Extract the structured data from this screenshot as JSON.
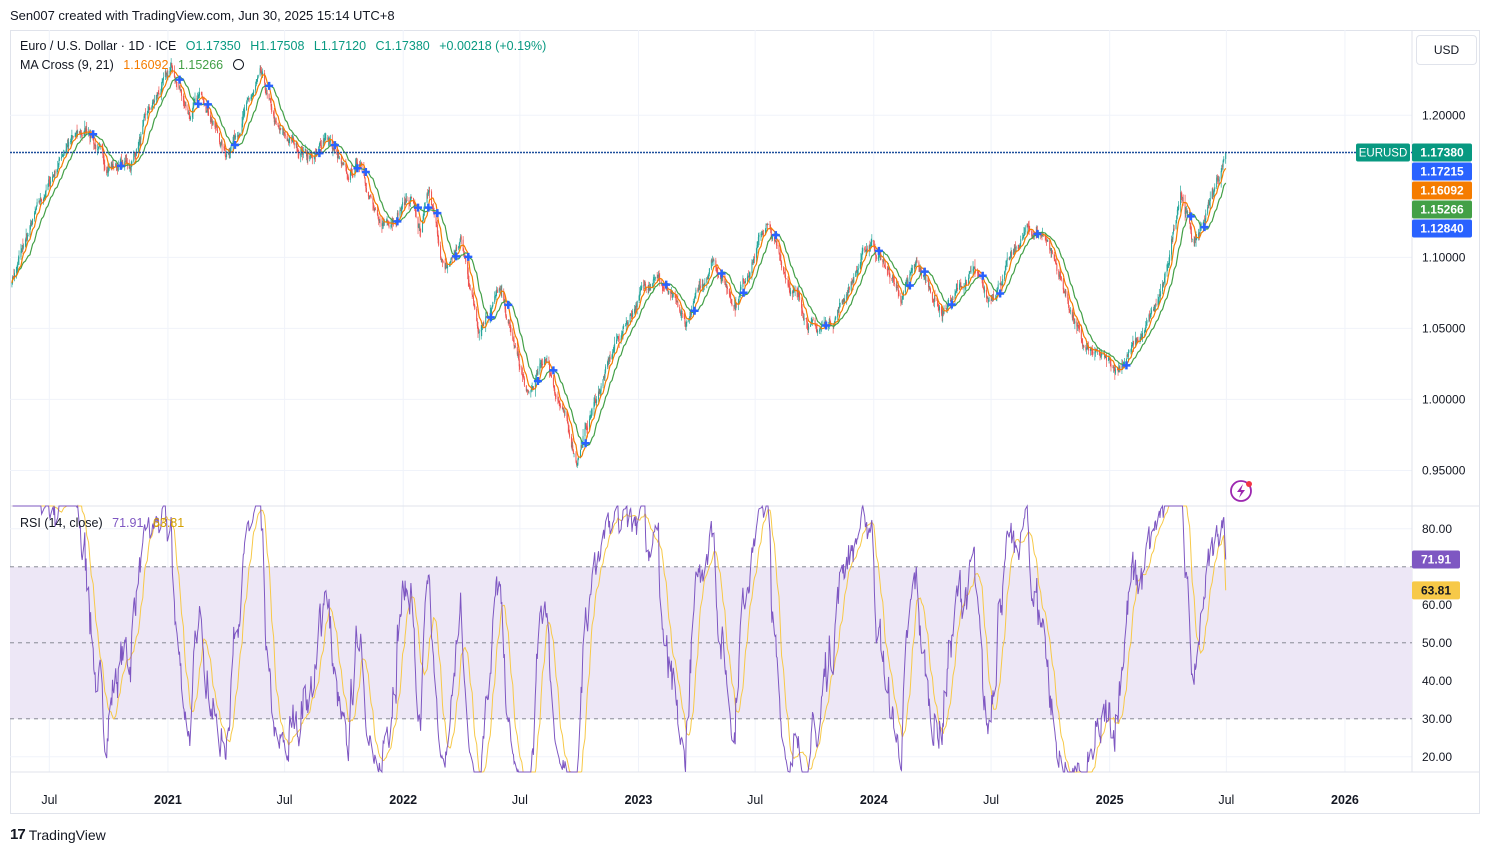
{
  "caption": "Sen007 created with TradingView.com, Jun 30, 2025 15:14 UTC+8",
  "legend": {
    "symbol": "Euro / U.S. Dollar · 1D · ICE",
    "open": "O1.17350",
    "high": "H1.17508",
    "low": "L1.17120",
    "close": "C1.17380",
    "change": "+0.00218 (+0.19%)",
    "ma_title": "MA Cross (9, 21)",
    "ma_fast": "1.16092",
    "ma_slow": "1.15266",
    "rsi_title": "RSI (14, close)",
    "rsi_value": "71.91",
    "rsi_ma": "63.81"
  },
  "currency_button": "USD",
  "brand": "TradingView",
  "colors": {
    "up": "#26a69a",
    "down": "#ef5350",
    "ma_fast": "#f57c00",
    "ma_slow": "#43a047",
    "cross": "#2962ff",
    "price_line": "#1e4f9c",
    "rsi": "#7e57c2",
    "rsi_ma": "#f7c948",
    "rsi_band": "#ede7f6"
  },
  "price_labels": [
    {
      "text": "EURUSD",
      "color": "#089981"
    },
    {
      "text": "1.17380",
      "color": "#089981"
    },
    {
      "text": "1.17215",
      "color": "#2962ff"
    },
    {
      "text": "1.16092",
      "color": "#f57c00"
    },
    {
      "text": "1.15266",
      "color": "#43a047"
    },
    {
      "text": "1.12840",
      "color": "#2962ff"
    }
  ],
  "rsi_labels": [
    {
      "text": "71.91",
      "color": "#7e57c2",
      "value": 71.91
    },
    {
      "text": "63.81",
      "color": "#f7c948",
      "value": 63.81
    }
  ],
  "chart_data": [
    {
      "type": "candlestick",
      "title": "Euro / U.S. Dollar · 1D · ICE",
      "x_range": [
        "2020-05-01",
        "2026-04-15"
      ],
      "ylim": [
        0.925,
        1.26
      ],
      "y_ticks": [
        "1.20000",
        "1.10000",
        "1.05000",
        "1.00000",
        "0.95000"
      ],
      "y_tick_values": [
        1.2,
        1.1,
        1.05,
        1.0,
        0.95
      ],
      "x_ticks": [
        "Jul",
        "2021",
        "Jul",
        "2022",
        "Jul",
        "2023",
        "Jul",
        "2024",
        "Jul",
        "2025",
        "Jul",
        "2026"
      ],
      "x_tick_dates": [
        "2020-07-01",
        "2021-01-01",
        "2021-07-01",
        "2022-01-01",
        "2022-07-01",
        "2023-01-01",
        "2023-07-01",
        "2024-01-01",
        "2024-07-01",
        "2025-01-01",
        "2025-07-01",
        "2026-01-01"
      ],
      "last_price": 1.1738,
      "price_path": [
        [
          "2020-05-04",
          1.085
        ],
        [
          "2020-06-10",
          1.13
        ],
        [
          "2020-07-28",
          1.18
        ],
        [
          "2020-09-01",
          1.19
        ],
        [
          "2020-09-25",
          1.165
        ],
        [
          "2020-11-04",
          1.165
        ],
        [
          "2020-12-01",
          1.2
        ],
        [
          "2021-01-06",
          1.232
        ],
        [
          "2021-02-05",
          1.2
        ],
        [
          "2021-02-25",
          1.215
        ],
        [
          "2021-03-31",
          1.172
        ],
        [
          "2021-05-25",
          1.226
        ],
        [
          "2021-06-20",
          1.188
        ],
        [
          "2021-07-20",
          1.178
        ],
        [
          "2021-08-20",
          1.17
        ],
        [
          "2021-09-03",
          1.188
        ],
        [
          "2021-10-06",
          1.154
        ],
        [
          "2021-10-28",
          1.169
        ],
        [
          "2021-11-24",
          1.12
        ],
        [
          "2022-01-14",
          1.143
        ],
        [
          "2022-01-28",
          1.115
        ],
        [
          "2022-02-10",
          1.144
        ],
        [
          "2022-03-07",
          1.088
        ],
        [
          "2022-03-31",
          1.112
        ],
        [
          "2022-04-28",
          1.052
        ],
        [
          "2022-05-30",
          1.077
        ],
        [
          "2022-07-14",
          1.0
        ],
        [
          "2022-08-10",
          1.03
        ],
        [
          "2022-09-27",
          0.958
        ],
        [
          "2022-10-27",
          1.0
        ],
        [
          "2022-11-28",
          1.04
        ],
        [
          "2022-12-30",
          1.07
        ],
        [
          "2023-01-26",
          1.09
        ],
        [
          "2023-03-15",
          1.052
        ],
        [
          "2023-04-26",
          1.1
        ],
        [
          "2023-05-31",
          1.068
        ],
        [
          "2023-07-18",
          1.124
        ],
        [
          "2023-08-25",
          1.08
        ],
        [
          "2023-10-03",
          1.047
        ],
        [
          "2023-11-01",
          1.058
        ],
        [
          "2023-12-28",
          1.112
        ],
        [
          "2024-02-14",
          1.071
        ],
        [
          "2024-03-08",
          1.095
        ],
        [
          "2024-04-16",
          1.062
        ],
        [
          "2024-06-04",
          1.09
        ],
        [
          "2024-06-26",
          1.068
        ],
        [
          "2024-08-26",
          1.119
        ],
        [
          "2024-09-25",
          1.115
        ],
        [
          "2024-11-22",
          1.035
        ],
        [
          "2025-01-13",
          1.022
        ],
        [
          "2025-02-25",
          1.048
        ],
        [
          "2025-03-27",
          1.08
        ],
        [
          "2025-04-21",
          1.15
        ],
        [
          "2025-05-12",
          1.108
        ],
        [
          "2025-06-10",
          1.145
        ],
        [
          "2025-06-30",
          1.1738
        ]
      ]
    },
    {
      "type": "line",
      "title": "RSI (14, close)",
      "ylim": [
        16,
        86
      ],
      "y_ticks": [
        "80.00",
        "60.00",
        "50.00",
        "40.00",
        "30.00",
        "20.00"
      ],
      "y_tick_values": [
        80,
        60,
        50,
        40,
        30,
        20
      ],
      "bands": [
        30,
        50,
        70
      ],
      "last_value": 71.91,
      "last_ma": 63.81
    }
  ]
}
